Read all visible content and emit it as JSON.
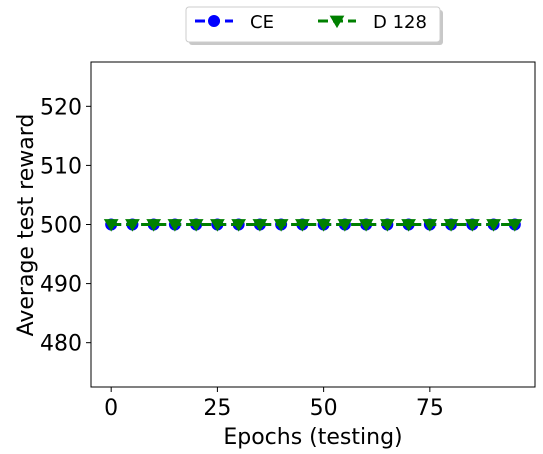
{
  "chart_data": {
    "type": "line",
    "xlabel": "Epochs (testing)",
    "ylabel": "Average test reward",
    "xlim": [
      -4.75,
      99.75
    ],
    "ylim": [
      472.5,
      527.5
    ],
    "xticks": [
      0,
      25,
      50,
      75
    ],
    "yticks": [
      480,
      490,
      500,
      510,
      520
    ],
    "grid": false,
    "legend_position": "top-center, outside plot, two columns",
    "x": [
      0,
      5,
      10,
      15,
      20,
      25,
      30,
      35,
      40,
      45,
      50,
      55,
      60,
      65,
      70,
      75,
      80,
      85,
      90,
      95
    ],
    "series": [
      {
        "name": "CE",
        "values": [
          500,
          500,
          500,
          500,
          500,
          500,
          500,
          500,
          500,
          500,
          500,
          500,
          500,
          500,
          500,
          500,
          500,
          500,
          500,
          500
        ],
        "color": "#0000ff",
        "linestyle": "dashed",
        "marker": "circle"
      },
      {
        "name": "D 128",
        "values": [
          500,
          500,
          500,
          500,
          500,
          500,
          500,
          500,
          500,
          500,
          500,
          500,
          500,
          500,
          500,
          500,
          500,
          500,
          500,
          500
        ],
        "color": "#008000",
        "linestyle": "dashed",
        "marker": "triangle-down"
      }
    ]
  }
}
